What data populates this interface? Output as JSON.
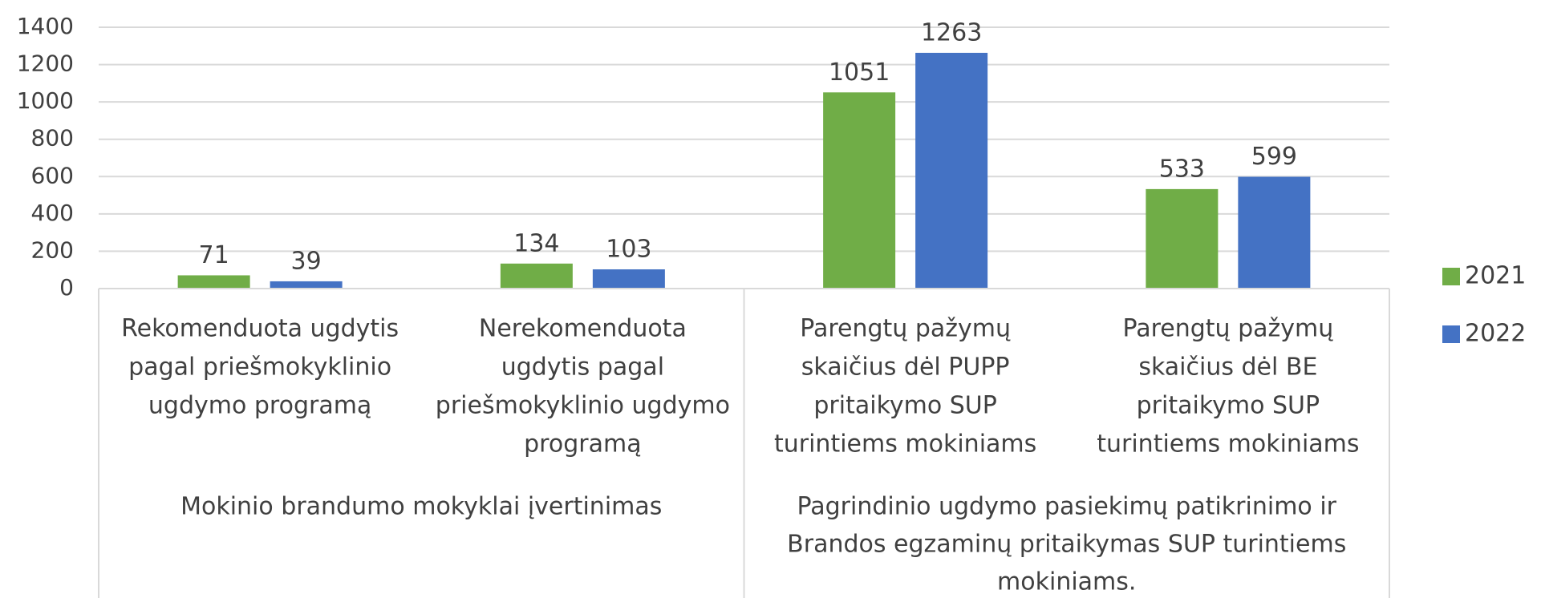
{
  "chart_data": {
    "type": "bar",
    "categories": [
      [
        "Rekomenduota ugdytis",
        "pagal priešmokyklinio",
        "ugdymo programą"
      ],
      [
        "Nerekomenduota",
        "ugdytis pagal",
        "priešmokyklinio ugdymo",
        "programą"
      ],
      [
        "Parengtų pažymų",
        "skaičius dėl PUPP",
        "pritaikymo SUP",
        "turintiems mokiniams"
      ],
      [
        "Parengtų pažymų",
        "skaičius dėl BE",
        "pritaikymo SUP",
        "turintiems mokiniams"
      ]
    ],
    "groups": [
      {
        "label": [
          "Mokinio brandumo mokyklai įvertinimas"
        ],
        "members": [
          0,
          1
        ]
      },
      {
        "label": [
          "Pagrindinio ugdymo pasiekimų patikrinimo ir",
          "Brandos egzaminų pritaikymas SUP turintiems",
          "mokiniams."
        ],
        "members": [
          2,
          3
        ]
      }
    ],
    "series": [
      {
        "name": "2021",
        "color": "#70ad47",
        "values": [
          71,
          134,
          1051,
          533
        ]
      },
      {
        "name": "2022",
        "color": "#4472c4",
        "values": [
          39,
          103,
          1263,
          599
        ]
      }
    ],
    "ylim": [
      0,
      1400
    ],
    "yticks": [
      0,
      200,
      400,
      600,
      800,
      1000,
      1200,
      1400
    ],
    "grid": true,
    "legend": "right"
  }
}
